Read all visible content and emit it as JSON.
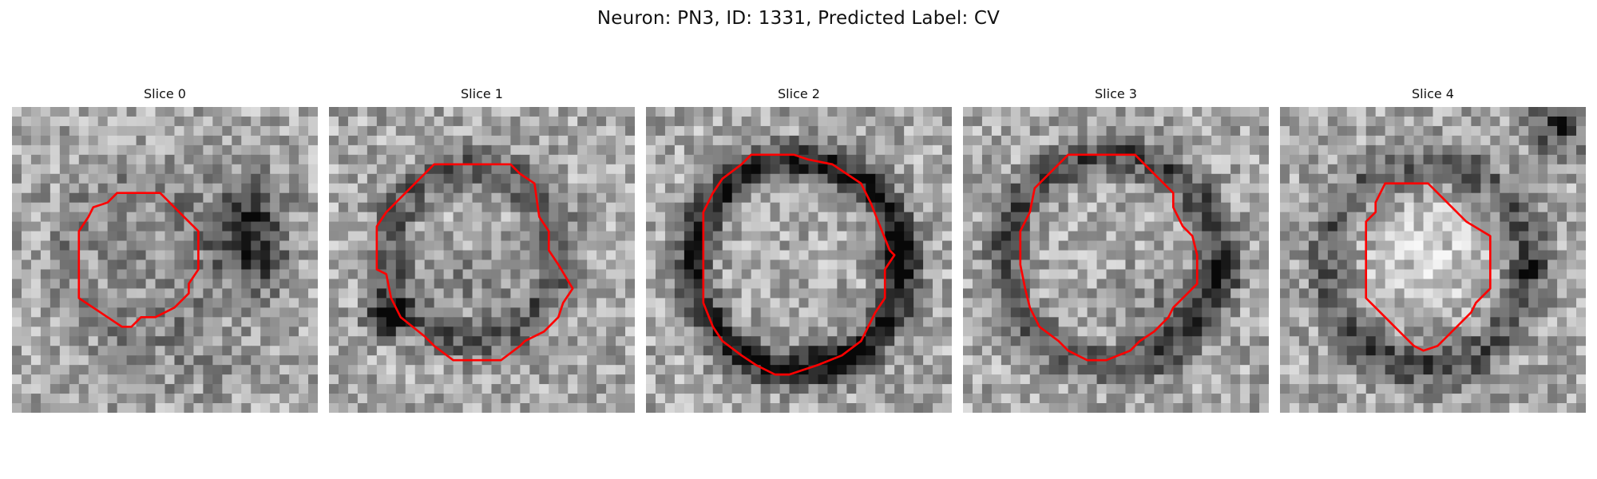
{
  "figure": {
    "title": "Neuron: PN3, ID: 1331, Predicted Label: CV"
  },
  "panels": [
    {
      "title": "Slice 0",
      "outline_color": "#ff0000"
    },
    {
      "title": "Slice 1",
      "outline_color": "#ff0000"
    },
    {
      "title": "Slice 2",
      "outline_color": "#ff0000"
    },
    {
      "title": "Slice 3",
      "outline_color": "#ff0000"
    },
    {
      "title": "Slice 4",
      "outline_color": "#ff0000"
    }
  ],
  "colors": {
    "background": "#ffffff",
    "outline": "#ff0000"
  }
}
